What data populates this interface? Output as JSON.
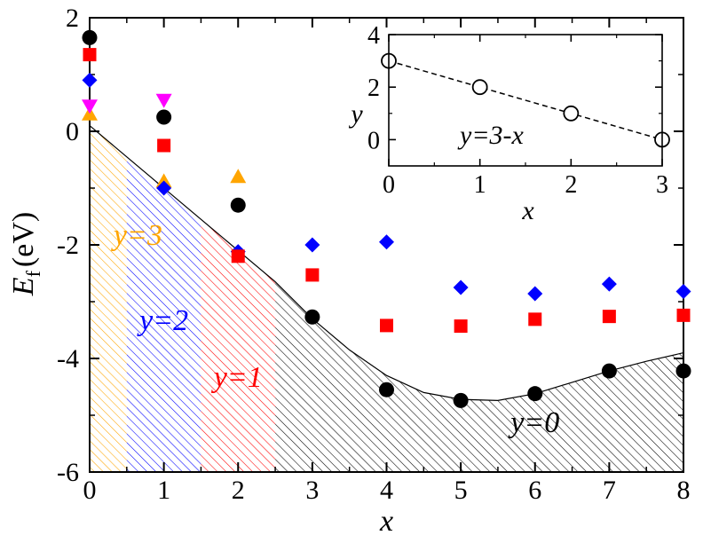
{
  "chart_data": [
    {
      "type": "scatter",
      "xlabel": "x",
      "ylabel": "E",
      "ylabel_sub": "f",
      "ylabel_unit": "(eV)",
      "xlim": [
        0,
        8
      ],
      "ylim": [
        -6,
        2
      ],
      "xticks": [
        "0",
        "1",
        "2",
        "3",
        "4",
        "5",
        "6",
        "7",
        "8"
      ],
      "yticks": [
        "-6",
        "-4",
        "-2",
        "0",
        "2"
      ],
      "series": [
        {
          "name": "y=0",
          "marker": "circle",
          "color": "#000000",
          "x": [
            0,
            1,
            2,
            3,
            4,
            5,
            6,
            7,
            8
          ],
          "y": [
            1.65,
            0.25,
            -1.3,
            -3.27,
            -4.55,
            -4.74,
            -4.62,
            -4.22,
            -4.22
          ]
        },
        {
          "name": "y=1",
          "marker": "square",
          "color": "#ff0000",
          "x": [
            0,
            1,
            2,
            3,
            4,
            5,
            6,
            7,
            8
          ],
          "y": [
            1.35,
            -0.25,
            -2.2,
            -2.53,
            -3.42,
            -3.43,
            -3.31,
            -3.26,
            -3.24
          ]
        },
        {
          "name": "y=2",
          "marker": "diamond",
          "color": "#0000ff",
          "x": [
            0,
            1,
            2,
            3,
            4,
            5,
            6,
            7,
            8
          ],
          "y": [
            0.9,
            -1.0,
            -2.12,
            -2.0,
            -1.95,
            -2.75,
            -2.86,
            -2.69,
            -2.82
          ]
        },
        {
          "name": "y=3",
          "marker": "triangle-up",
          "color": "#ffa500",
          "x": [
            0,
            1,
            2
          ],
          "y": [
            0.3,
            -0.88,
            -0.8
          ]
        },
        {
          "name": "",
          "marker": "triangle-down",
          "color": "#ff00ff",
          "x": [
            0,
            1
          ],
          "y": [
            0.45,
            0.55
          ]
        }
      ],
      "hull": {
        "x": [
          0,
          0.5,
          1.5,
          2.5,
          3,
          3.5,
          4,
          4.5,
          5,
          5.5,
          6,
          6.5,
          7,
          7.5,
          8
        ],
        "y": [
          0.1,
          -0.45,
          -1.55,
          -2.65,
          -3.3,
          -3.85,
          -4.3,
          -4.6,
          -4.72,
          -4.74,
          -4.62,
          -4.42,
          -4.22,
          -4.05,
          -3.9
        ]
      },
      "regions": [
        {
          "label": "y=3",
          "color": "#ffa500",
          "x": [
            0,
            0.5
          ]
        },
        {
          "label": "y=2",
          "color": "#0000ff",
          "x": [
            0.5,
            1.5
          ]
        },
        {
          "label": "y=1",
          "color": "#ff0000",
          "x": [
            1.5,
            2.5
          ]
        },
        {
          "label": "y=0",
          "color": "#000000",
          "x": [
            2.5,
            8
          ]
        }
      ]
    },
    {
      "type": "line",
      "role": "inset",
      "xlabel": "x",
      "ylabel": "y",
      "annotation": "y=3-x",
      "xlim": [
        0,
        3
      ],
      "ylim": [
        -1,
        4
      ],
      "xticks": [
        "0",
        "1",
        "2",
        "3"
      ],
      "yticks": [
        "0",
        "2",
        "4"
      ],
      "line_style": "dashed",
      "marker": "open-circle",
      "x": [
        0,
        1,
        2,
        3
      ],
      "y": [
        3,
        2,
        1,
        0
      ]
    }
  ]
}
